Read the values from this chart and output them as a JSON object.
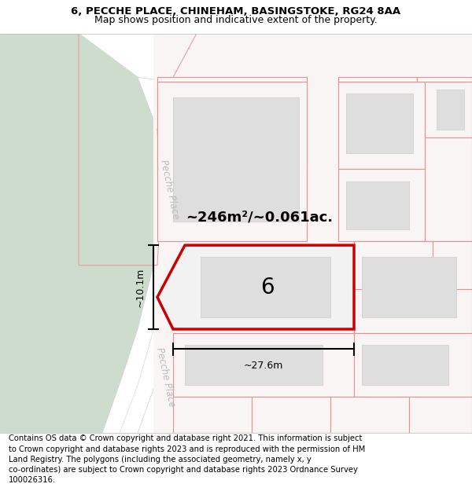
{
  "title_line1": "6, PECCHE PLACE, CHINEHAM, BASINGSTOKE, RG24 8AA",
  "title_line2": "Map shows position and indicative extent of the property.",
  "footer_text": "Contains OS data © Crown copyright and database right 2021. This information is subject to Crown copyright and database rights 2023 and is reproduced with the permission of HM Land Registry. The polygons (including the associated geometry, namely x, y co-ordinates) are subject to Crown copyright and database rights 2023 Ordnance Survey 100026316.",
  "bg_map_color": "#eef2ee",
  "green_area_color": "#cddccd",
  "road_color": "#ffffff",
  "plot_outline_color": "#cc0000",
  "plot_fill_color": "#f2f2f2",
  "building_fill_color": "#dedede",
  "other_plot_fill": "#faf5f5",
  "other_plot_outline": "#e89090",
  "street_label": "Pecche Place",
  "area_label": "~246m²/~0.061ac.",
  "number_label": "6",
  "dim_width": "~27.6m",
  "dim_height": "~10.1m",
  "title_fontsize": 9.5,
  "footer_fontsize": 7.2
}
